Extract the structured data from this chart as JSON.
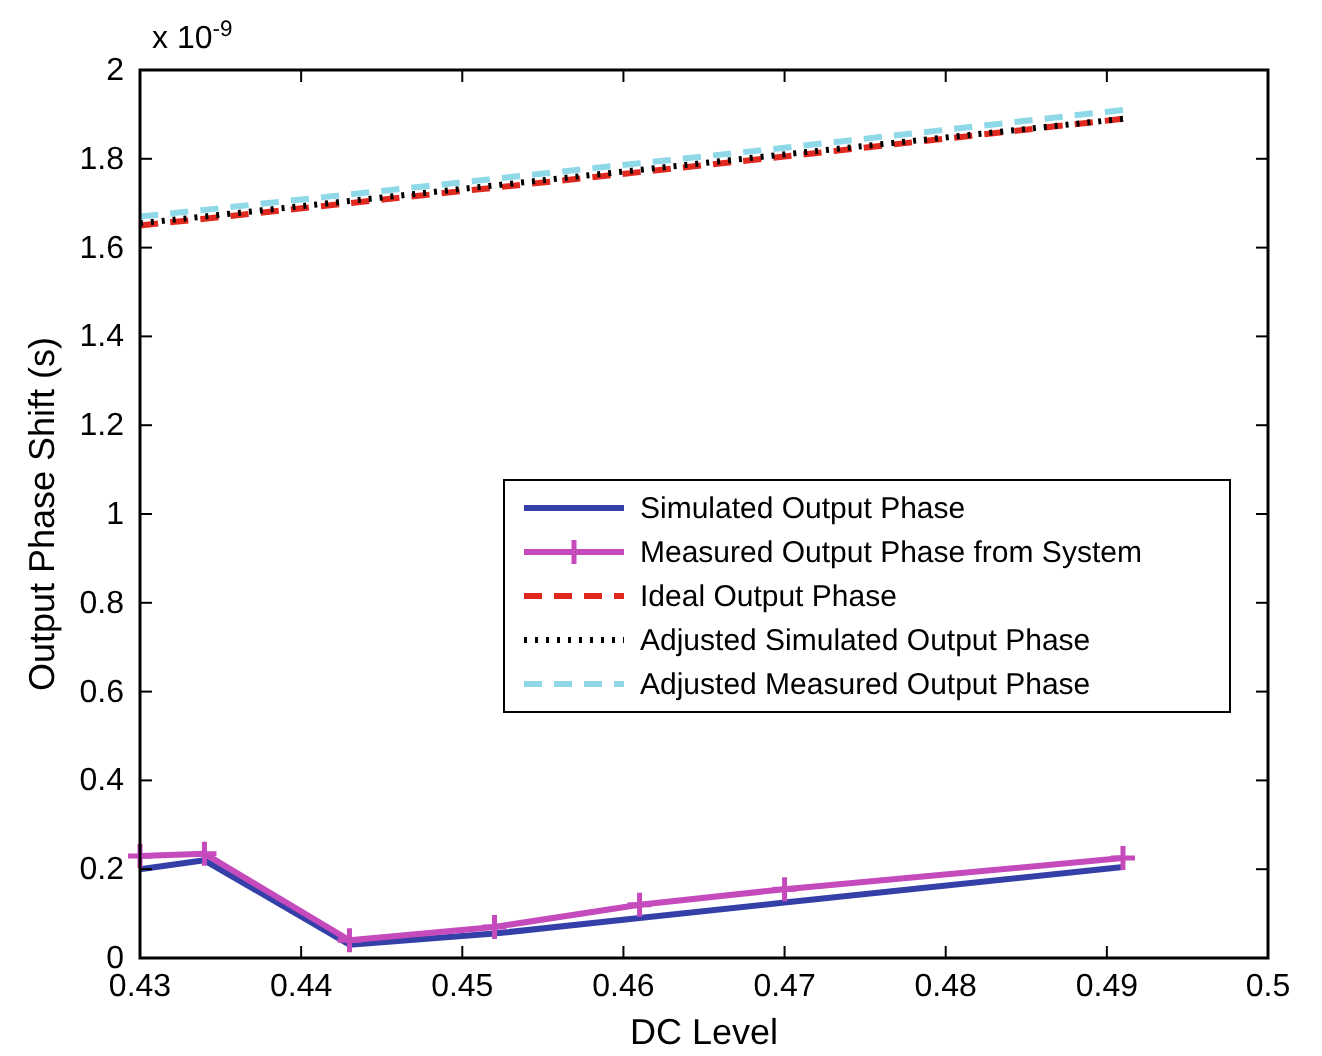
{
  "chart_data": {
    "type": "line",
    "xlabel": "DC Level",
    "ylabel": "Output Phase Shift (s)",
    "annotations": [
      "x 10$^{-9}$"
    ],
    "x": [
      0.43,
      0.434,
      0.443,
      0.452,
      0.461,
      0.47,
      0.491
    ],
    "series": [
      {
        "name": "Simulated Output Phase",
        "color": "#3440a8",
        "line_style": "solid",
        "marker": "none",
        "values": [
          0.2,
          0.22,
          0.03,
          0.055,
          0.09,
          0.125,
          0.205
        ]
      },
      {
        "name": "Measured Output Phase from System",
        "color": "#c54bbd",
        "line_style": "solid",
        "marker": "cross",
        "values": [
          0.23,
          0.235,
          0.04,
          0.07,
          0.12,
          0.155,
          0.225
        ]
      },
      {
        "name": "Ideal Output Phase",
        "color": "#e0281e",
        "line_style": "dashed",
        "marker": "none",
        "values": [
          1.65,
          1.665,
          1.7,
          1.735,
          1.77,
          1.805,
          1.89
        ]
      },
      {
        "name": "Adjusted Simulated Output Phase",
        "color": "#000000",
        "line_style": "dotted",
        "marker": "none",
        "values": [
          1.655,
          1.67,
          1.705,
          1.74,
          1.775,
          1.81,
          1.89
        ]
      },
      {
        "name": "Adjusted Measured Output Phase",
        "color": "#8fd8e8",
        "line_style": "dashed",
        "marker": "none",
        "values": [
          1.67,
          1.685,
          1.72,
          1.755,
          1.79,
          1.825,
          1.91
        ]
      }
    ],
    "xlim": [
      0.43,
      0.5
    ],
    "xticks": [
      0.43,
      0.44,
      0.45,
      0.46,
      0.47,
      0.48,
      0.49,
      0.5
    ],
    "ylim": [
      0,
      2
    ],
    "yticks": [
      0,
      0.2,
      0.4,
      0.6,
      0.8,
      1,
      1.2,
      1.4,
      1.6,
      1.8,
      2
    ],
    "grid": false,
    "legend": "right"
  }
}
